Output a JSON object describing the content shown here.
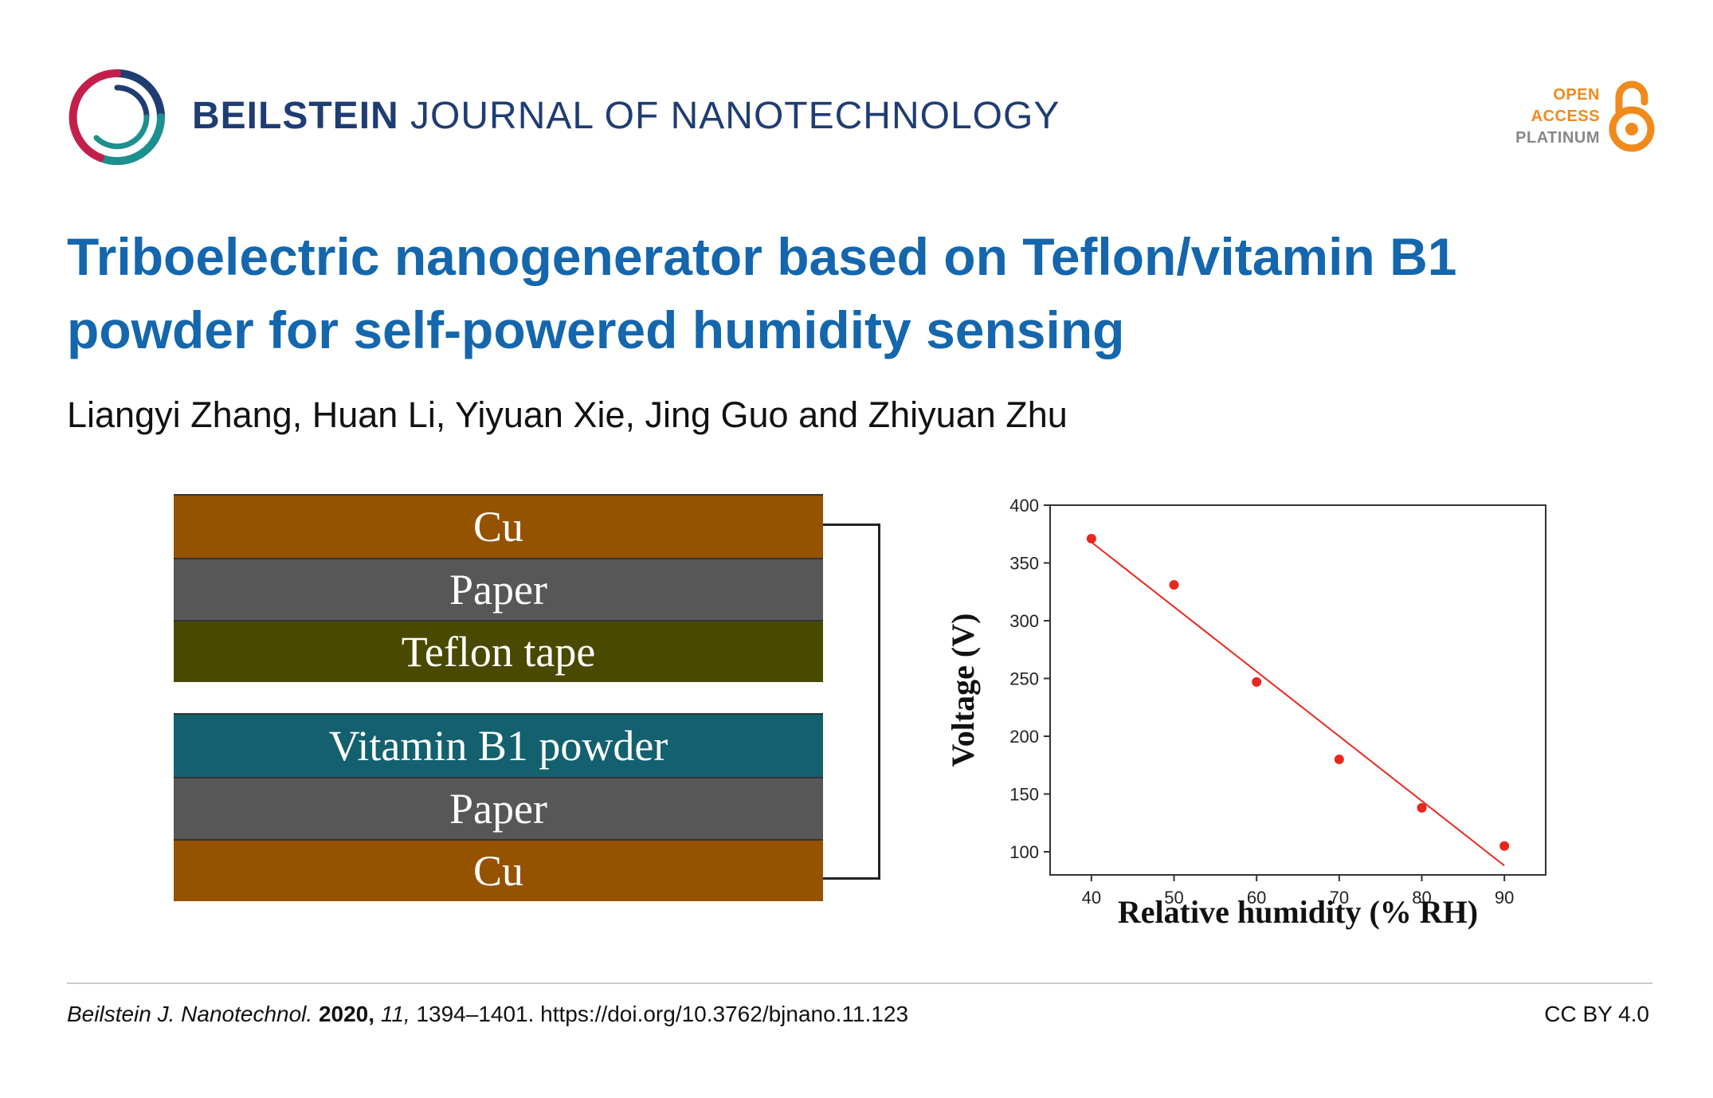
{
  "header": {
    "journal_bold": "BEILSTEIN",
    "journal_light": "JOURNAL OF NANOTECHNOLOGY",
    "oa_line1": "OPEN",
    "oa_line2": "ACCESS",
    "oa_line3": "PLATINUM",
    "logo_icon": "beilstein-ring-logo",
    "oa_icon": "open-access-lock-icon",
    "colors": {
      "journal": "#1f3d73",
      "title": "#1466ad",
      "oa": "#f08a1c"
    }
  },
  "article": {
    "title": "Triboelectric nanogenerator based on Teflon/vitamin B1 powder for self-powered humidity sensing",
    "authors": "Liangyi Zhang, Huan Li, Yiyuan Xie, Jing Guo and Zhiyuan Zhu"
  },
  "diagram": {
    "layers": [
      "Cu",
      "Paper",
      "Teflon tape",
      "Vitamin B1 powder",
      "Paper",
      "Cu"
    ],
    "colors": {
      "cu": "#955300",
      "paper": "#575757",
      "teflon": "#4a4900",
      "vitamin": "#13606f"
    }
  },
  "chart_data": {
    "type": "scatter",
    "xlabel": "Relative humidity (% RH)",
    "ylabel": "Voltage (V)",
    "x": [
      40,
      50,
      60,
      70,
      80,
      90
    ],
    "y": [
      371,
      331,
      247,
      180,
      138,
      105
    ],
    "x_ticks": [
      "40",
      "50",
      "60",
      "70",
      "80",
      "90"
    ],
    "y_ticks": [
      "100",
      "150",
      "200",
      "250",
      "300",
      "350",
      "400"
    ],
    "xlim": [
      35,
      95
    ],
    "ylim": [
      80,
      400
    ],
    "fit_line": {
      "x": [
        40,
        90
      ],
      "y": [
        368,
        88
      ]
    },
    "point_color": "#e8271f",
    "line_color": "#e8271f",
    "grid": false
  },
  "footer": {
    "journal_abbrev": "Beilstein J. Nanotechnol.",
    "year": "2020,",
    "volume": "11,",
    "pages_doi": "1394–1401. https://doi.org/10.3762/bjnano.11.123",
    "license": "CC BY 4.0"
  }
}
